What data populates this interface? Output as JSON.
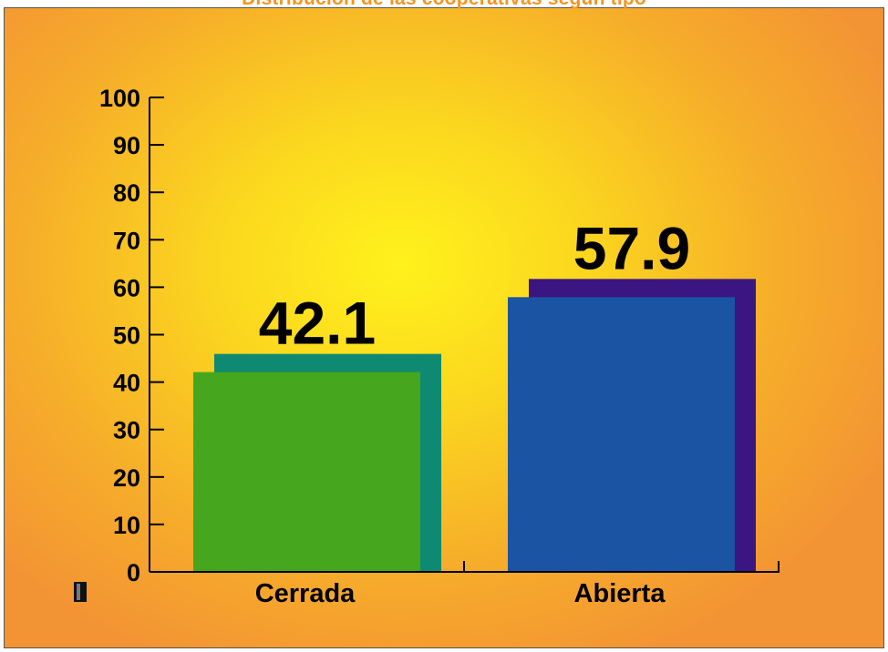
{
  "chart_data": {
    "type": "bar",
    "title": "Distribución de las cooperativas según tipo",
    "categories": [
      "Cerrada",
      "Abierta"
    ],
    "values": [
      42.1,
      57.9
    ],
    "data_labels": [
      "42.1",
      "57.9"
    ],
    "xlabel": "",
    "ylabel": "",
    "ylim": [
      0,
      100
    ],
    "yticks": [
      "0",
      "10",
      "20",
      "30",
      "40",
      "50",
      "60",
      "70",
      "80",
      "90",
      "100"
    ],
    "grid": false,
    "legend": "bottom-left",
    "bar_style": "3d-shadow",
    "colors": {
      "front": [
        "#46a61d",
        "#1a54a2"
      ],
      "shadow": [
        "#0e8a72",
        "#3b1682"
      ],
      "title": "#f7941d",
      "background_center": "#fff21c",
      "background_edge": "#f39434"
    }
  }
}
